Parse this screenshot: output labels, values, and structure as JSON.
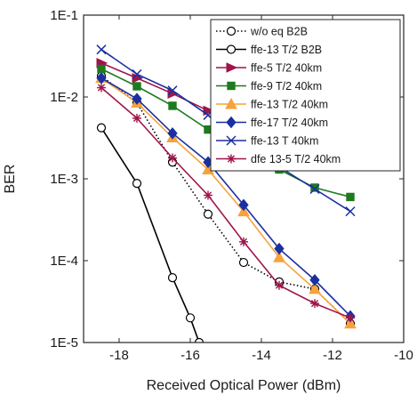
{
  "chart_data": {
    "type": "line",
    "title": "",
    "xlabel": "Received Optical Power (dBm)",
    "ylabel": "BER",
    "xlim": [
      -19,
      -10
    ],
    "ylim": [
      1e-05,
      0.1
    ],
    "yscale": "log",
    "grid": false,
    "legend_position": "top-right",
    "x_ticks": [
      -18,
      -16,
      -14,
      -12,
      -10
    ],
    "x_tick_labels": [
      "-18",
      "-16",
      "-14",
      "-12",
      "-10"
    ],
    "y_ticks": [
      1e-05,
      0.0001,
      0.001,
      0.01,
      0.1
    ],
    "y_tick_labels": [
      "1E-5",
      "1E-4",
      "1E-3",
      "1E-2",
      "1E-1"
    ],
    "series": [
      {
        "name": "w/o eq B2B",
        "color": "#000000",
        "marker": "circle-open",
        "dash": "dotted",
        "x": [
          -18.5,
          -17.5,
          -16.5,
          -15.5,
          -14.5,
          -13.5,
          -12.5,
          -11.5
        ],
        "y": [
          0.018,
          0.0085,
          0.0016,
          0.00037,
          9.5e-05,
          5.5e-05,
          4.5e-05,
          1.7e-05
        ]
      },
      {
        "name": "ffe-13 T/2 B2B",
        "color": "#000000",
        "marker": "circle-open",
        "dash": "solid",
        "x": [
          -18.5,
          -17.5,
          -16.5,
          -16.0,
          -15.75
        ],
        "y": [
          0.0042,
          0.00088,
          6.2e-05,
          2e-05,
          1e-05
        ]
      },
      {
        "name": "ffe-5 T/2 40km",
        "color": "#a0144a",
        "marker": "triangle-right",
        "dash": "solid",
        "x": [
          -18.5,
          -17.5,
          -16.5,
          -15.5,
          -14.5,
          -13.5,
          -12.5,
          -11.5
        ],
        "y": [
          0.026,
          0.017,
          0.011,
          0.0068,
          0.0043,
          0.003,
          0.0025,
          0.0019
        ]
      },
      {
        "name": "ffe-9 T/2 40km",
        "color": "#1e7a1e",
        "marker": "square",
        "dash": "solid",
        "x": [
          -18.5,
          -17.5,
          -16.5,
          -15.5,
          -14.5,
          -13.5,
          -12.5,
          -11.5
        ],
        "y": [
          0.022,
          0.0135,
          0.0078,
          0.004,
          0.0022,
          0.0013,
          0.00078,
          0.0006
        ]
      },
      {
        "name": "ffe-13 T/2 40km",
        "color": "#f7a23a",
        "marker": "triangle-up",
        "dash": "solid",
        "x": [
          -18.5,
          -17.5,
          -16.5,
          -15.5,
          -14.5,
          -13.5,
          -12.5,
          -11.5
        ],
        "y": [
          0.017,
          0.0085,
          0.0032,
          0.0013,
          0.0004,
          0.00011,
          4.5e-05,
          1.7e-05
        ]
      },
      {
        "name": "ffe-17 T/2 40km",
        "color": "#1a2fa0",
        "marker": "diamond",
        "dash": "solid",
        "x": [
          -18.5,
          -17.5,
          -16.5,
          -15.5,
          -14.5,
          -13.5,
          -12.5,
          -11.5
        ],
        "y": [
          0.017,
          0.0095,
          0.0036,
          0.0016,
          0.00048,
          0.00014,
          5.8e-05,
          2.1e-05
        ]
      },
      {
        "name": "ffe-13 T 40km",
        "color": "#1a2fa0",
        "marker": "x",
        "dash": "solid",
        "x": [
          -18.5,
          -17.5,
          -16.5,
          -15.5,
          -14.5,
          -13.5,
          -12.5,
          -11.5
        ],
        "y": [
          0.038,
          0.019,
          0.012,
          0.006,
          0.0025,
          0.0014,
          0.00075,
          0.0004
        ]
      },
      {
        "name": "dfe 13-5 T/2 40km",
        "color": "#a0144a",
        "marker": "asterisk",
        "dash": "solid",
        "x": [
          -18.5,
          -17.5,
          -16.5,
          -15.5,
          -14.5,
          -13.5,
          -12.5,
          -11.5
        ],
        "y": [
          0.013,
          0.0055,
          0.0018,
          0.00063,
          0.00017,
          5e-05,
          3e-05,
          2e-05
        ]
      }
    ]
  }
}
